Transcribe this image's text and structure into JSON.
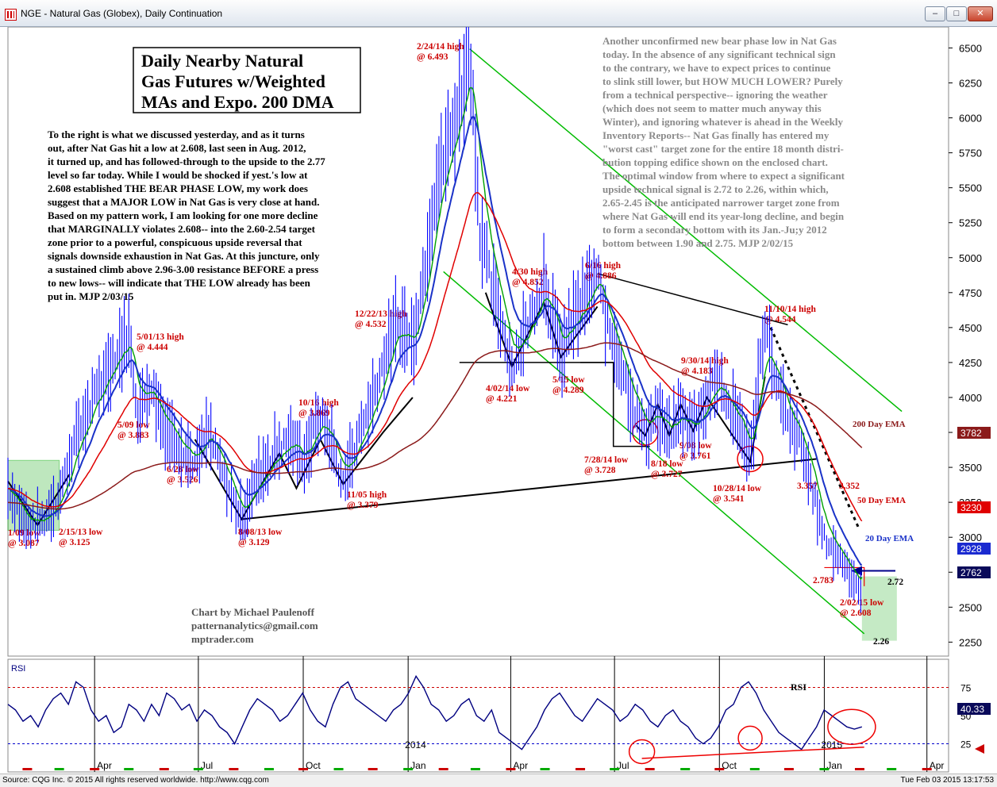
{
  "window": {
    "title": "NGE - Natural Gas (Globex), Daily Continuation",
    "min_label": "–",
    "max_label": "□",
    "close_label": "✕"
  },
  "footer": {
    "left": "Source: CQG Inc. © 2015 All rights reserved worldwide. http://www.cqg.com",
    "right": "Tue Feb 03 2015 13:17:53"
  },
  "colors": {
    "price": "#0000ff",
    "ema20": "#1a32c8",
    "ema50": "#e00000",
    "ema200": "#8b1a1a",
    "wma": "#00a000",
    "trend": "#000000",
    "channel": "#00bb00",
    "rsi": "#000080"
  },
  "title_box": [
    "Daily Nearby Natural",
    "Gas Futures w/Weighted",
    "MAs and Expo. 200 DMA"
  ],
  "commentary_left": [
    "To the right is what we discussed yesterday, and as it turns",
    "out, after Nat Gas hit a low at 2.608, last seen in Aug. 2012,",
    "it turned up, and has followed-through to the upside to the 2.77",
    "level so far today. While I would be shocked if yest.'s low at",
    "2.608 established THE BEAR PHASE LOW, my work does",
    "suggest that a MAJOR LOW in Nat Gas is very close at hand.",
    "Based on my pattern work, I am looking for one more decline",
    "that MARGINALLY violates 2.608-- into the 2.60-2.54 target",
    "zone prior to a powerful, conspicuous upside reversal that",
    "signals downside exhaustion in Nat Gas. At this juncture, only",
    "a sustained climb above 2.96-3.00 resistance BEFORE a press",
    "to new lows-- will indicate that THE LOW already has been",
    "put in.  MJP  2/03/15"
  ],
  "commentary_right": [
    "Another unconfirmed new bear phase low in Nat Gas",
    "today. In the absence of any significant technical sign",
    "to the contrary, we have to expect prices to continue",
    "to slink still lower, but HOW MUCH LOWER?  Purely",
    "from a technical perspective-- ignoring the weather",
    "(which does not seem to matter much anyway this",
    "Winter), and ignoring whatever is ahead in the Weekly",
    "Inventory Reports-- Nat Gas finally has entered my",
    "\"worst cast\" target zone for the entire 18 month distri-",
    "bution topping edifice shown on the enclosed chart.",
    "The optimal window from where to expect a significant",
    "upside technical signal is 2.72 to 2.26, within which,",
    "2.65-2.45 is the anticipated narrower target zone from",
    "where Nat Gas will end its year-long decline, and begin",
    "to form a secondary bottom with its Jan.-Ju;y 2012",
    "bottom between 1.90 and 2.75.  MJP 2/02/15"
  ],
  "credit": [
    "Chart by Michael Paulenoff",
    "patternanalytics@gmail.com",
    "mptrader.com"
  ],
  "chart_data": {
    "type": "line",
    "title": "NGE - Natural Gas (Globex), Daily Continuation",
    "ylim": [
      2150,
      6650
    ],
    "y_ticks": [
      6500,
      6250,
      6000,
      5750,
      5500,
      5250,
      5000,
      4750,
      4500,
      4250,
      4000,
      3750,
      3500,
      3250,
      3000,
      2750,
      2500,
      2250
    ],
    "x_ticks": [
      "Apr",
      "Jul",
      "Oct",
      "2014",
      "Jan",
      "Apr",
      "Jul",
      "Oct",
      "Jan",
      "2015",
      "Apr"
    ],
    "x_range": [
      "2013-01-15",
      "2015-04-20"
    ],
    "series": [
      {
        "name": "",
        "dates": [
          "2013-01-15",
          "2013-02-01",
          "2013-02-15",
          "2013-03-01",
          "2013-03-15",
          "2013-04-01",
          "2013-04-12",
          "2013-05-01",
          "2013-05-09",
          "2013-05-20",
          "2013-06-01",
          "2013-06-28",
          "2013-07-10",
          "2013-07-25",
          "2013-08-08",
          "2013-08-20",
          "2013-09-05",
          "2013-09-20",
          "2013-10-01",
          "2013-10-16",
          "2013-10-25",
          "2013-11-05",
          "2013-11-15",
          "2013-12-01",
          "2013-12-12",
          "2013-12-22",
          "2014-01-05",
          "2014-01-15",
          "2014-01-25",
          "2014-02-05",
          "2014-02-15",
          "2014-02-24",
          "2014-03-05",
          "2014-03-15",
          "2014-03-25",
          "2014-04-02",
          "2014-04-15",
          "2014-04-30",
          "2014-05-15",
          "2014-05-25",
          "2014-06-05",
          "2014-06-16",
          "2014-06-25",
          "2014-07-05",
          "2014-07-15",
          "2014-07-28",
          "2014-08-05",
          "2014-08-18",
          "2014-08-28",
          "2014-09-08",
          "2014-09-20",
          "2014-09-30",
          "2014-10-10",
          "2014-10-20",
          "2014-10-28",
          "2014-11-05",
          "2014-11-10",
          "2014-11-20",
          "2014-12-01",
          "2014-12-10",
          "2014-12-20",
          "2014-12-31",
          "2015-01-10",
          "2015-01-20",
          "2015-02-02",
          "2015-02-03"
        ],
        "values": [
          3350,
          3087,
          3125,
          3300,
          3700,
          4000,
          4200,
          4444,
          3883,
          4100,
          3800,
          3526,
          3750,
          3400,
          3129,
          3400,
          3600,
          3700,
          3550,
          3869,
          3700,
          3379,
          3650,
          4000,
          4300,
          4532,
          4400,
          4900,
          5500,
          5800,
          6100,
          6493,
          5200,
          4800,
          4500,
          4221,
          4500,
          4852,
          4289,
          4550,
          4700,
          4886,
          4500,
          4300,
          4000,
          3728,
          3900,
          3727,
          3900,
          3761,
          4000,
          4183,
          3900,
          3800,
          3541,
          4200,
          4544,
          4100,
          3800,
          3700,
          3400,
          3000,
          2900,
          2800,
          2608,
          2770
        ]
      },
      {
        "name": "20 Day EMA",
        "last": 2928
      },
      {
        "name": "50 Day EMA",
        "last": 3230
      },
      {
        "name": "200 Day EMA",
        "last": 3782
      }
    ],
    "last_price": 2762,
    "target_levels": [
      2.72,
      2.26
    ],
    "annotations": [
      {
        "text": "2/24/14 high",
        "value": "@ 6.493"
      },
      {
        "text": "5/01/13 high",
        "value": "@  4.444"
      },
      {
        "text": "5/09 low",
        "value": "@ 3.883"
      },
      {
        "text": "6/28 low",
        "value": "@ 3.526"
      },
      {
        "text": "8/08/13 low",
        "value": "@ 3.129"
      },
      {
        "text": "10/16 high",
        "value": "@ 3.869"
      },
      {
        "text": "11/05 high",
        "value": "@ 3.379"
      },
      {
        "text": "12/22/13 high",
        "value": "@ 4.532"
      },
      {
        "text": "4/02/14 low",
        "value": "@ 4.221"
      },
      {
        "text": "4/30 high",
        "value": "@ 4.852"
      },
      {
        "text": "5/15 low",
        "value": "@ 4.289"
      },
      {
        "text": "6/16 high",
        "value": "@ 4.886"
      },
      {
        "text": "7/28/14 low",
        "value": "@ 3.728"
      },
      {
        "text": "8/18 low",
        "value": "@ 3.727"
      },
      {
        "text": "9/08 low",
        "value": "@ 3.761"
      },
      {
        "text": "9/30/14 high",
        "value": "@ 4.183"
      },
      {
        "text": "10/28/14 low",
        "value": "@ 3.541"
      },
      {
        "text": "11/10/14 high",
        "value": "@ 4.544"
      },
      {
        "text": "3.352",
        "value": ""
      },
      {
        "text": "3.357",
        "value": ""
      },
      {
        "text": "2.783",
        "value": ""
      },
      {
        "text": "2/02/15 low",
        "value": "@ 2.608"
      },
      {
        "text": "1/09 low",
        "value": "@ 3.087"
      },
      {
        "text": "2/15/13 low",
        "value": "@ 3.125"
      }
    ]
  },
  "rsi_data": {
    "type": "line",
    "label": "RSI",
    "ticks": [
      75,
      50,
      25
    ],
    "last": "40.33",
    "ylim": [
      0,
      100
    ],
    "values": [
      60,
      55,
      45,
      50,
      40,
      55,
      65,
      70,
      60,
      80,
      75,
      55,
      45,
      50,
      35,
      40,
      60,
      55,
      45,
      60,
      50,
      70,
      65,
      55,
      60,
      45,
      55,
      50,
      40,
      35,
      25,
      40,
      55,
      65,
      60,
      55,
      45,
      50,
      60,
      70,
      55,
      45,
      40,
      60,
      75,
      80,
      65,
      60,
      55,
      50,
      45,
      55,
      60,
      70,
      85,
      75,
      60,
      55,
      45,
      50,
      60,
      65,
      50,
      45,
      55,
      35,
      30,
      25,
      20,
      30,
      40,
      55,
      65,
      70,
      60,
      50,
      45,
      55,
      65,
      60,
      55,
      45,
      50,
      60,
      55,
      45,
      40,
      50,
      55,
      45,
      40,
      30,
      25,
      30,
      40,
      55,
      60,
      75,
      80,
      70,
      55,
      45,
      35,
      30,
      25,
      20,
      30,
      40,
      55,
      50,
      45,
      40,
      38,
      40
    ]
  },
  "labels": {
    "ema200": "200 Day EMA",
    "ema50": "50 Day EMA",
    "ema20": "20 Day EMA",
    "tag_200": "3782",
    "tag_50": "3230",
    "tag_20": "2928",
    "tag_last": "2762",
    "lvl_272": "2.72",
    "lvl_226": "2.26",
    "rsi_title": "RSI",
    "rsi_corner": "RSI"
  }
}
